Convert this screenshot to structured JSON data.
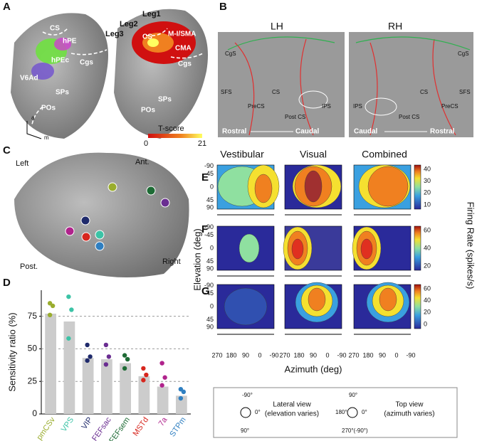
{
  "panels": {
    "labels": [
      "A",
      "B",
      "C",
      "D",
      "E",
      "F",
      "G"
    ]
  },
  "panel_a": {
    "left_labels": [
      "CS",
      "hPE",
      "hPEc",
      "Cgs",
      "V6Ad",
      "SPs",
      "POs",
      "a",
      "m"
    ],
    "right_labels": [
      "Leg1",
      "Leg2",
      "Leg3",
      "CS",
      "M-I/SMA",
      "CMA",
      "Cgs",
      "SPs",
      "POs"
    ],
    "colorbar": {
      "title": "T-score",
      "min": "0",
      "max": "21"
    }
  },
  "panel_b": {
    "lh": "LH",
    "rh": "RH",
    "lh_labels": [
      "CgS",
      "SFS",
      "PreCS",
      "CS",
      "Post CS",
      "IPS"
    ],
    "rh_labels": [
      "CgS",
      "SFS",
      "PreCS",
      "CS",
      "Post CS",
      "IPS"
    ],
    "lh_axis": [
      "Rostral",
      "Caudal"
    ],
    "rh_axis": [
      "Caudal",
      "Rostral"
    ]
  },
  "panel_c": {
    "labels": [
      "Left",
      "Ant.",
      "Post.",
      "Right"
    ]
  },
  "panel_efg": {
    "columns": [
      "Vestibular",
      "Visual",
      "Combined"
    ],
    "elevation_ticks": [
      "-90",
      "-45",
      "0",
      "45",
      "90"
    ],
    "azimuth_ticks": [
      "270",
      "180",
      "90",
      "0",
      "-90"
    ],
    "y_label": "Elevation (deg)",
    "x_label": "Azimuth (deg)",
    "z_label": "Firing Rate (spikes/s)",
    "colorbar_ticks": [
      [
        "40",
        "30",
        "20",
        "10"
      ],
      [
        "60",
        "40",
        "20"
      ],
      [
        "60",
        "40",
        "20",
        "0"
      ]
    ]
  },
  "legend": {
    "lateral": {
      "title": "Lateral view",
      "note": "(elevation varies)",
      "top": "-90°",
      "right": "0°",
      "bottom": "90°"
    },
    "top_view": {
      "title": "Top view",
      "note": "(azimuth varies)",
      "top": "90°",
      "left": "180°",
      "right": "0°",
      "bottom": "270°(-90°)"
    }
  },
  "chart_data": {
    "type": "bar",
    "y_label": "Sensitivity ratio (%)",
    "categories": [
      "pmCSv",
      "VPS",
      "VIP",
      "FEFsac",
      "FEFsem",
      "MSTd",
      "7a",
      "STPm"
    ],
    "values": [
      77,
      71,
      43,
      42,
      39,
      29,
      21,
      14
    ],
    "colors": [
      "#9aad2e",
      "#3cc3a6",
      "#1f2a6b",
      "#6a2d91",
      "#1e6b35",
      "#d7261e",
      "#b0238c",
      "#2f7fc1"
    ],
    "points": [
      [
        85,
        83,
        76
      ],
      [
        90,
        80,
        58
      ],
      [
        53,
        44,
        41
      ],
      [
        53,
        44,
        38
      ],
      [
        45,
        42,
        35
      ],
      [
        35,
        30,
        26
      ],
      [
        39,
        28,
        22
      ],
      [
        19,
        17,
        12
      ]
    ],
    "bar_color": "#cccccc",
    "ylim": [
      0,
      95
    ],
    "yticks": [
      0,
      25,
      50,
      75
    ],
    "grid": true
  }
}
